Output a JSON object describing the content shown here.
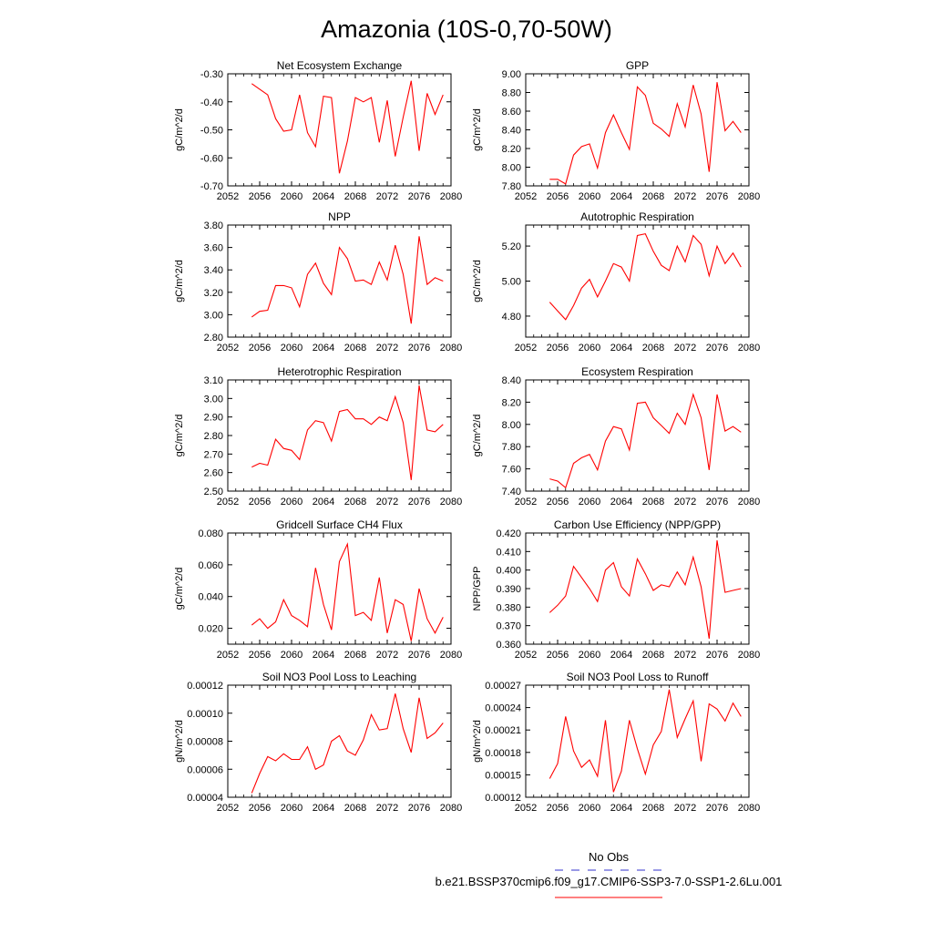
{
  "title": "Amazonia (10S-0,70-50W)",
  "colors": {
    "line": "#ff0000",
    "obs": "#3333cc",
    "axis": "#000000"
  },
  "legend": {
    "items": [
      {
        "label": "No Obs",
        "style": "dashed",
        "color": "#3333cc"
      },
      {
        "label": "b.e21.BSSP370cmip6.f09_g17.CMIP6-SSP3-7.0-SSP1-2.6Lu.001",
        "style": "solid",
        "color": "#ff0000"
      }
    ]
  },
  "chart_data": [
    {
      "type": "line",
      "title": "Net Ecosystem Exchange",
      "ylabel": "gC/m^2/d",
      "xlim": [
        2052,
        2080
      ],
      "ylim": [
        -0.7,
        -0.3
      ],
      "xticks": [
        "2052",
        "2056",
        "2060",
        "2064",
        "2068",
        "2072",
        "2076",
        "2080"
      ],
      "yticks": [
        "-0.70",
        "-0.60",
        "-0.50",
        "-0.40",
        "-0.30"
      ],
      "x": [
        2055,
        2056,
        2057,
        2058,
        2059,
        2060,
        2061,
        2062,
        2063,
        2064,
        2065,
        2066,
        2067,
        2068,
        2069,
        2070,
        2071,
        2072,
        2073,
        2074,
        2075,
        2076,
        2077,
        2078,
        2079
      ],
      "values": [
        -0.335,
        -0.355,
        -0.375,
        -0.46,
        -0.505,
        -0.5,
        -0.375,
        -0.51,
        -0.56,
        -0.38,
        -0.385,
        -0.655,
        -0.54,
        -0.385,
        -0.4,
        -0.385,
        -0.545,
        -0.395,
        -0.595,
        -0.455,
        -0.325,
        -0.575,
        -0.37,
        -0.445,
        -0.375
      ]
    },
    {
      "type": "line",
      "title": "GPP",
      "ylabel": "gC/m^2/d",
      "xlim": [
        2052,
        2080
      ],
      "ylim": [
        7.8,
        9.0
      ],
      "xticks": [
        "2052",
        "2056",
        "2060",
        "2064",
        "2068",
        "2072",
        "2076",
        "2080"
      ],
      "yticks": [
        "7.80",
        "8.00",
        "8.20",
        "8.40",
        "8.60",
        "8.80",
        "9.00"
      ],
      "x": [
        2055,
        2056,
        2057,
        2058,
        2059,
        2060,
        2061,
        2062,
        2063,
        2064,
        2065,
        2066,
        2067,
        2068,
        2069,
        2070,
        2071,
        2072,
        2073,
        2074,
        2075,
        2076,
        2077,
        2078,
        2079
      ],
      "values": [
        7.87,
        7.87,
        7.82,
        8.13,
        8.22,
        8.25,
        7.99,
        8.37,
        8.56,
        8.37,
        8.19,
        8.86,
        8.77,
        8.47,
        8.41,
        8.33,
        8.68,
        8.43,
        8.88,
        8.57,
        7.95,
        8.91,
        8.39,
        8.49,
        8.37
      ]
    },
    {
      "type": "line",
      "title": "NPP",
      "ylabel": "gC/m^2/d",
      "xlim": [
        2052,
        2080
      ],
      "ylim": [
        2.8,
        3.8
      ],
      "xticks": [
        "2052",
        "2056",
        "2060",
        "2064",
        "2068",
        "2072",
        "2076",
        "2080"
      ],
      "yticks": [
        "2.80",
        "3.00",
        "3.20",
        "3.40",
        "3.60",
        "3.80"
      ],
      "x": [
        2055,
        2056,
        2057,
        2058,
        2059,
        2060,
        2061,
        2062,
        2063,
        2064,
        2065,
        2066,
        2067,
        2068,
        2069,
        2070,
        2071,
        2072,
        2073,
        2074,
        2075,
        2076,
        2077,
        2078,
        2079
      ],
      "values": [
        2.98,
        3.03,
        3.04,
        3.26,
        3.26,
        3.24,
        3.07,
        3.36,
        3.46,
        3.28,
        3.18,
        3.6,
        3.5,
        3.3,
        3.31,
        3.27,
        3.47,
        3.31,
        3.62,
        3.36,
        2.92,
        3.7,
        3.27,
        3.33,
        3.3
      ]
    },
    {
      "type": "line",
      "title": "Autotrophic Respiration",
      "ylabel": "gC/m^2/d",
      "xlim": [
        2052,
        2080
      ],
      "ylim": [
        4.68,
        5.32
      ],
      "xticks": [
        "2052",
        "2056",
        "2060",
        "2064",
        "2068",
        "2072",
        "2076",
        "2080"
      ],
      "yticks": [
        "4.80",
        "5.00",
        "5.20"
      ],
      "x": [
        2055,
        2056,
        2057,
        2058,
        2059,
        2060,
        2061,
        2062,
        2063,
        2064,
        2065,
        2066,
        2067,
        2068,
        2069,
        2070,
        2071,
        2072,
        2073,
        2074,
        2075,
        2076,
        2077,
        2078,
        2079
      ],
      "values": [
        4.88,
        4.83,
        4.78,
        4.86,
        4.96,
        5.01,
        4.91,
        5.0,
        5.1,
        5.08,
        5.0,
        5.26,
        5.27,
        5.17,
        5.09,
        5.06,
        5.2,
        5.11,
        5.26,
        5.21,
        5.03,
        5.2,
        5.1,
        5.16,
        5.08
      ]
    },
    {
      "type": "line",
      "title": "Heterotrophic Respiration",
      "ylabel": "gC/m^2/d",
      "xlim": [
        2052,
        2080
      ],
      "ylim": [
        2.5,
        3.1
      ],
      "xticks": [
        "2052",
        "2056",
        "2060",
        "2064",
        "2068",
        "2072",
        "2076",
        "2080"
      ],
      "yticks": [
        "2.50",
        "2.60",
        "2.70",
        "2.80",
        "2.90",
        "3.00",
        "3.10"
      ],
      "x": [
        2055,
        2056,
        2057,
        2058,
        2059,
        2060,
        2061,
        2062,
        2063,
        2064,
        2065,
        2066,
        2067,
        2068,
        2069,
        2070,
        2071,
        2072,
        2073,
        2074,
        2075,
        2076,
        2077,
        2078,
        2079
      ],
      "values": [
        2.63,
        2.65,
        2.64,
        2.78,
        2.73,
        2.72,
        2.67,
        2.83,
        2.88,
        2.87,
        2.77,
        2.93,
        2.94,
        2.89,
        2.89,
        2.86,
        2.9,
        2.88,
        3.01,
        2.87,
        2.56,
        3.07,
        2.83,
        2.82,
        2.86
      ]
    },
    {
      "type": "line",
      "title": "Ecosystem Respiration",
      "ylabel": "gC/m^2/d",
      "xlim": [
        2052,
        2080
      ],
      "ylim": [
        7.4,
        8.4
      ],
      "xticks": [
        "2052",
        "2056",
        "2060",
        "2064",
        "2068",
        "2072",
        "2076",
        "2080"
      ],
      "yticks": [
        "7.40",
        "7.60",
        "7.80",
        "8.00",
        "8.20",
        "8.40"
      ],
      "x": [
        2055,
        2056,
        2057,
        2058,
        2059,
        2060,
        2061,
        2062,
        2063,
        2064,
        2065,
        2066,
        2067,
        2068,
        2069,
        2070,
        2071,
        2072,
        2073,
        2074,
        2075,
        2076,
        2077,
        2078,
        2079
      ],
      "values": [
        7.51,
        7.49,
        7.43,
        7.65,
        7.7,
        7.73,
        7.59,
        7.85,
        7.98,
        7.96,
        7.77,
        8.19,
        8.2,
        8.06,
        7.99,
        7.92,
        8.1,
        8.0,
        8.27,
        8.06,
        7.59,
        8.27,
        7.94,
        7.98,
        7.93
      ]
    },
    {
      "type": "line",
      "title": "Gridcell Surface CH4 Flux",
      "ylabel": "gC/m^2/d",
      "xlim": [
        2052,
        2080
      ],
      "ylim": [
        0.01,
        0.08
      ],
      "xticks": [
        "2052",
        "2056",
        "2060",
        "2064",
        "2068",
        "2072",
        "2076",
        "2080"
      ],
      "yticks": [
        "0.020",
        "0.040",
        "0.060",
        "0.080"
      ],
      "x": [
        2055,
        2056,
        2057,
        2058,
        2059,
        2060,
        2061,
        2062,
        2063,
        2064,
        2065,
        2066,
        2067,
        2068,
        2069,
        2070,
        2071,
        2072,
        2073,
        2074,
        2075,
        2076,
        2077,
        2078,
        2079
      ],
      "values": [
        0.022,
        0.026,
        0.02,
        0.024,
        0.038,
        0.028,
        0.025,
        0.021,
        0.058,
        0.035,
        0.019,
        0.062,
        0.073,
        0.028,
        0.03,
        0.025,
        0.052,
        0.017,
        0.038,
        0.035,
        0.012,
        0.045,
        0.026,
        0.017,
        0.027
      ]
    },
    {
      "type": "line",
      "title": "Carbon Use Efficiency (NPP/GPP)",
      "ylabel": "NPP/GPP",
      "xlim": [
        2052,
        2080
      ],
      "ylim": [
        0.36,
        0.42
      ],
      "xticks": [
        "2052",
        "2056",
        "2060",
        "2064",
        "2068",
        "2072",
        "2076",
        "2080"
      ],
      "yticks": [
        "0.360",
        "0.370",
        "0.380",
        "0.390",
        "0.400",
        "0.410",
        "0.420"
      ],
      "x": [
        2055,
        2056,
        2057,
        2058,
        2059,
        2060,
        2061,
        2062,
        2063,
        2064,
        2065,
        2066,
        2067,
        2068,
        2069,
        2070,
        2071,
        2072,
        2073,
        2074,
        2075,
        2076,
        2077,
        2078,
        2079
      ],
      "values": [
        0.377,
        0.381,
        0.386,
        0.402,
        0.396,
        0.39,
        0.383,
        0.4,
        0.404,
        0.391,
        0.386,
        0.406,
        0.398,
        0.389,
        0.392,
        0.391,
        0.399,
        0.392,
        0.407,
        0.391,
        0.363,
        0.416,
        0.388,
        0.389,
        0.39
      ]
    },
    {
      "type": "line",
      "title": "Soil NO3 Pool Loss to Leaching",
      "ylabel": "gN/m^2/d",
      "xlim": [
        2052,
        2080
      ],
      "ylim": [
        4e-05,
        0.00012
      ],
      "xticks": [
        "2052",
        "2056",
        "2060",
        "2064",
        "2068",
        "2072",
        "2076",
        "2080"
      ],
      "yticks": [
        "0.00004",
        "0.00006",
        "0.00008",
        "0.00010",
        "0.00012"
      ],
      "x": [
        2055,
        2056,
        2057,
        2058,
        2059,
        2060,
        2061,
        2062,
        2063,
        2064,
        2065,
        2066,
        2067,
        2068,
        2069,
        2070,
        2071,
        2072,
        2073,
        2074,
        2075,
        2076,
        2077,
        2078,
        2079
      ],
      "values": [
        4.3e-05,
        5.7e-05,
        6.9e-05,
        6.6e-05,
        7.1e-05,
        6.7e-05,
        6.7e-05,
        7.6e-05,
        6e-05,
        6.3e-05,
        8e-05,
        8.4e-05,
        7.3e-05,
        7e-05,
        8.1e-05,
        9.9e-05,
        8.8e-05,
        8.9e-05,
        0.000114,
        8.9e-05,
        7.2e-05,
        0.000111,
        8.2e-05,
        8.6e-05,
        9.3e-05
      ]
    },
    {
      "type": "line",
      "title": "Soil NO3 Pool Loss to Runoff",
      "ylabel": "gN/m^2/d",
      "xlim": [
        2052,
        2080
      ],
      "ylim": [
        0.00012,
        0.00027
      ],
      "xticks": [
        "2052",
        "2056",
        "2060",
        "2064",
        "2068",
        "2072",
        "2076",
        "2080"
      ],
      "yticks": [
        "0.00012",
        "0.00015",
        "0.00018",
        "0.00021",
        "0.00024",
        "0.00027"
      ],
      "x": [
        2055,
        2056,
        2057,
        2058,
        2059,
        2060,
        2061,
        2062,
        2063,
        2064,
        2065,
        2066,
        2067,
        2068,
        2069,
        2070,
        2071,
        2072,
        2073,
        2074,
        2075,
        2076,
        2077,
        2078,
        2079
      ],
      "values": [
        0.000145,
        0.000165,
        0.000228,
        0.000182,
        0.00016,
        0.00017,
        0.000148,
        0.000223,
        0.000127,
        0.000155,
        0.000223,
        0.000185,
        0.000151,
        0.00019,
        0.000208,
        0.000264,
        0.0002,
        0.000225,
        0.000249,
        0.000168,
        0.000245,
        0.000238,
        0.000222,
        0.000246,
        0.000228
      ]
    }
  ]
}
